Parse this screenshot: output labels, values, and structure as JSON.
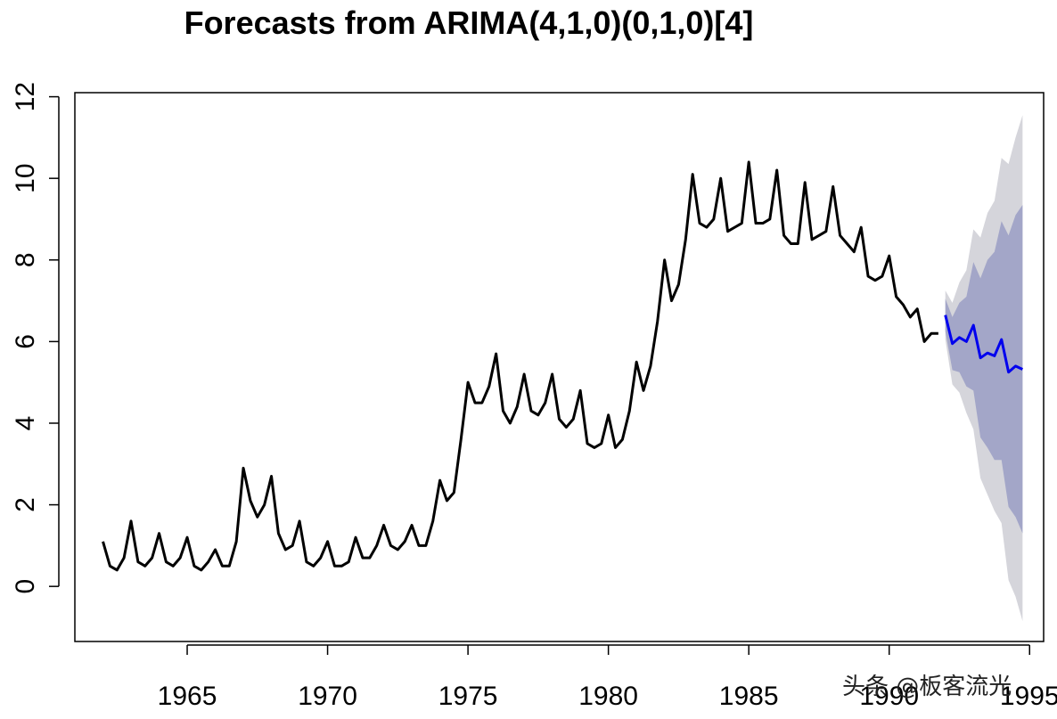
{
  "chart_data": {
    "type": "line",
    "title": "Forecasts from ARIMA(4,1,0)(0,1,0)[4]",
    "xlabel": "",
    "ylabel": "",
    "xlim": [
      1961.0,
      1995.5
    ],
    "ylim": [
      -1.35,
      12.1
    ],
    "x_ticks": [
      1965,
      1970,
      1975,
      1980,
      1985,
      1990,
      1995
    ],
    "y_ticks": [
      0,
      2,
      4,
      6,
      8,
      10,
      12
    ],
    "x_tick_labels": [
      "1965",
      "1970",
      "1975",
      "1980",
      "1985",
      "1990",
      "1995"
    ],
    "y_tick_labels": [
      "0",
      "2",
      "4",
      "6",
      "8",
      "10",
      "12"
    ],
    "grid": false,
    "series": [
      {
        "name": "observed",
        "color": "#000000",
        "start": 1962.0,
        "frequency": 4,
        "values": [
          1.1,
          0.5,
          0.4,
          0.7,
          1.6,
          0.6,
          0.5,
          0.7,
          1.3,
          0.6,
          0.5,
          0.7,
          1.2,
          0.5,
          0.4,
          0.6,
          0.9,
          0.5,
          0.5,
          1.1,
          2.9,
          2.1,
          1.7,
          2.0,
          2.7,
          1.3,
          0.9,
          1.0,
          1.6,
          0.6,
          0.5,
          0.7,
          1.1,
          0.5,
          0.5,
          0.6,
          1.2,
          0.7,
          0.7,
          1.0,
          1.5,
          1.0,
          0.9,
          1.1,
          1.5,
          1.0,
          1.0,
          1.6,
          2.6,
          2.1,
          2.3,
          3.6,
          5.0,
          4.5,
          4.5,
          4.9,
          5.7,
          4.3,
          4.0,
          4.4,
          5.2,
          4.3,
          4.2,
          4.5,
          5.2,
          4.1,
          3.9,
          4.1,
          4.8,
          3.5,
          3.4,
          3.5,
          4.2,
          3.4,
          3.6,
          4.3,
          5.5,
          4.8,
          5.4,
          6.5,
          8.0,
          7.0,
          7.4,
          8.5,
          10.1,
          8.9,
          8.8,
          9.0,
          10.0,
          8.7,
          8.8,
          8.9,
          10.4,
          8.9,
          8.9,
          9.0,
          10.2,
          8.6,
          8.4,
          8.4,
          9.9,
          8.5,
          8.6,
          8.7,
          9.8,
          8.6,
          8.4,
          8.2,
          8.8,
          7.6,
          7.5,
          7.6,
          8.1,
          7.1,
          6.9,
          6.6,
          6.8,
          6.0,
          6.2,
          6.2
        ]
      },
      {
        "name": "forecast",
        "color": "#0000ee",
        "start": 1992.0,
        "frequency": 4,
        "values": [
          6.65,
          5.95,
          6.1,
          6.0,
          6.4,
          5.6,
          5.72,
          5.65,
          6.05,
          5.25,
          5.4,
          5.32
        ]
      }
    ],
    "intervals": [
      {
        "name": "95% prediction interval",
        "color": "#d5d5db",
        "lower": [
          6.05,
          4.95,
          4.75,
          4.25,
          3.85,
          2.65,
          2.25,
          1.85,
          1.55,
          0.15,
          -0.25,
          -0.85
        ],
        "upper": [
          7.25,
          6.95,
          7.45,
          7.75,
          8.75,
          8.55,
          9.15,
          9.45,
          10.5,
          10.35,
          11.0,
          11.55
        ]
      },
      {
        "name": "80% prediction interval",
        "color": "#a3a6c8",
        "lower": [
          6.25,
          5.3,
          5.25,
          4.9,
          4.8,
          3.65,
          3.4,
          3.1,
          3.1,
          1.95,
          1.7,
          1.3
        ],
        "upper": [
          7.05,
          6.6,
          6.95,
          7.1,
          7.95,
          7.55,
          8.0,
          8.2,
          8.95,
          8.6,
          9.1,
          9.35
        ]
      }
    ]
  },
  "watermark": {
    "text": "头条 @板客流光"
  }
}
